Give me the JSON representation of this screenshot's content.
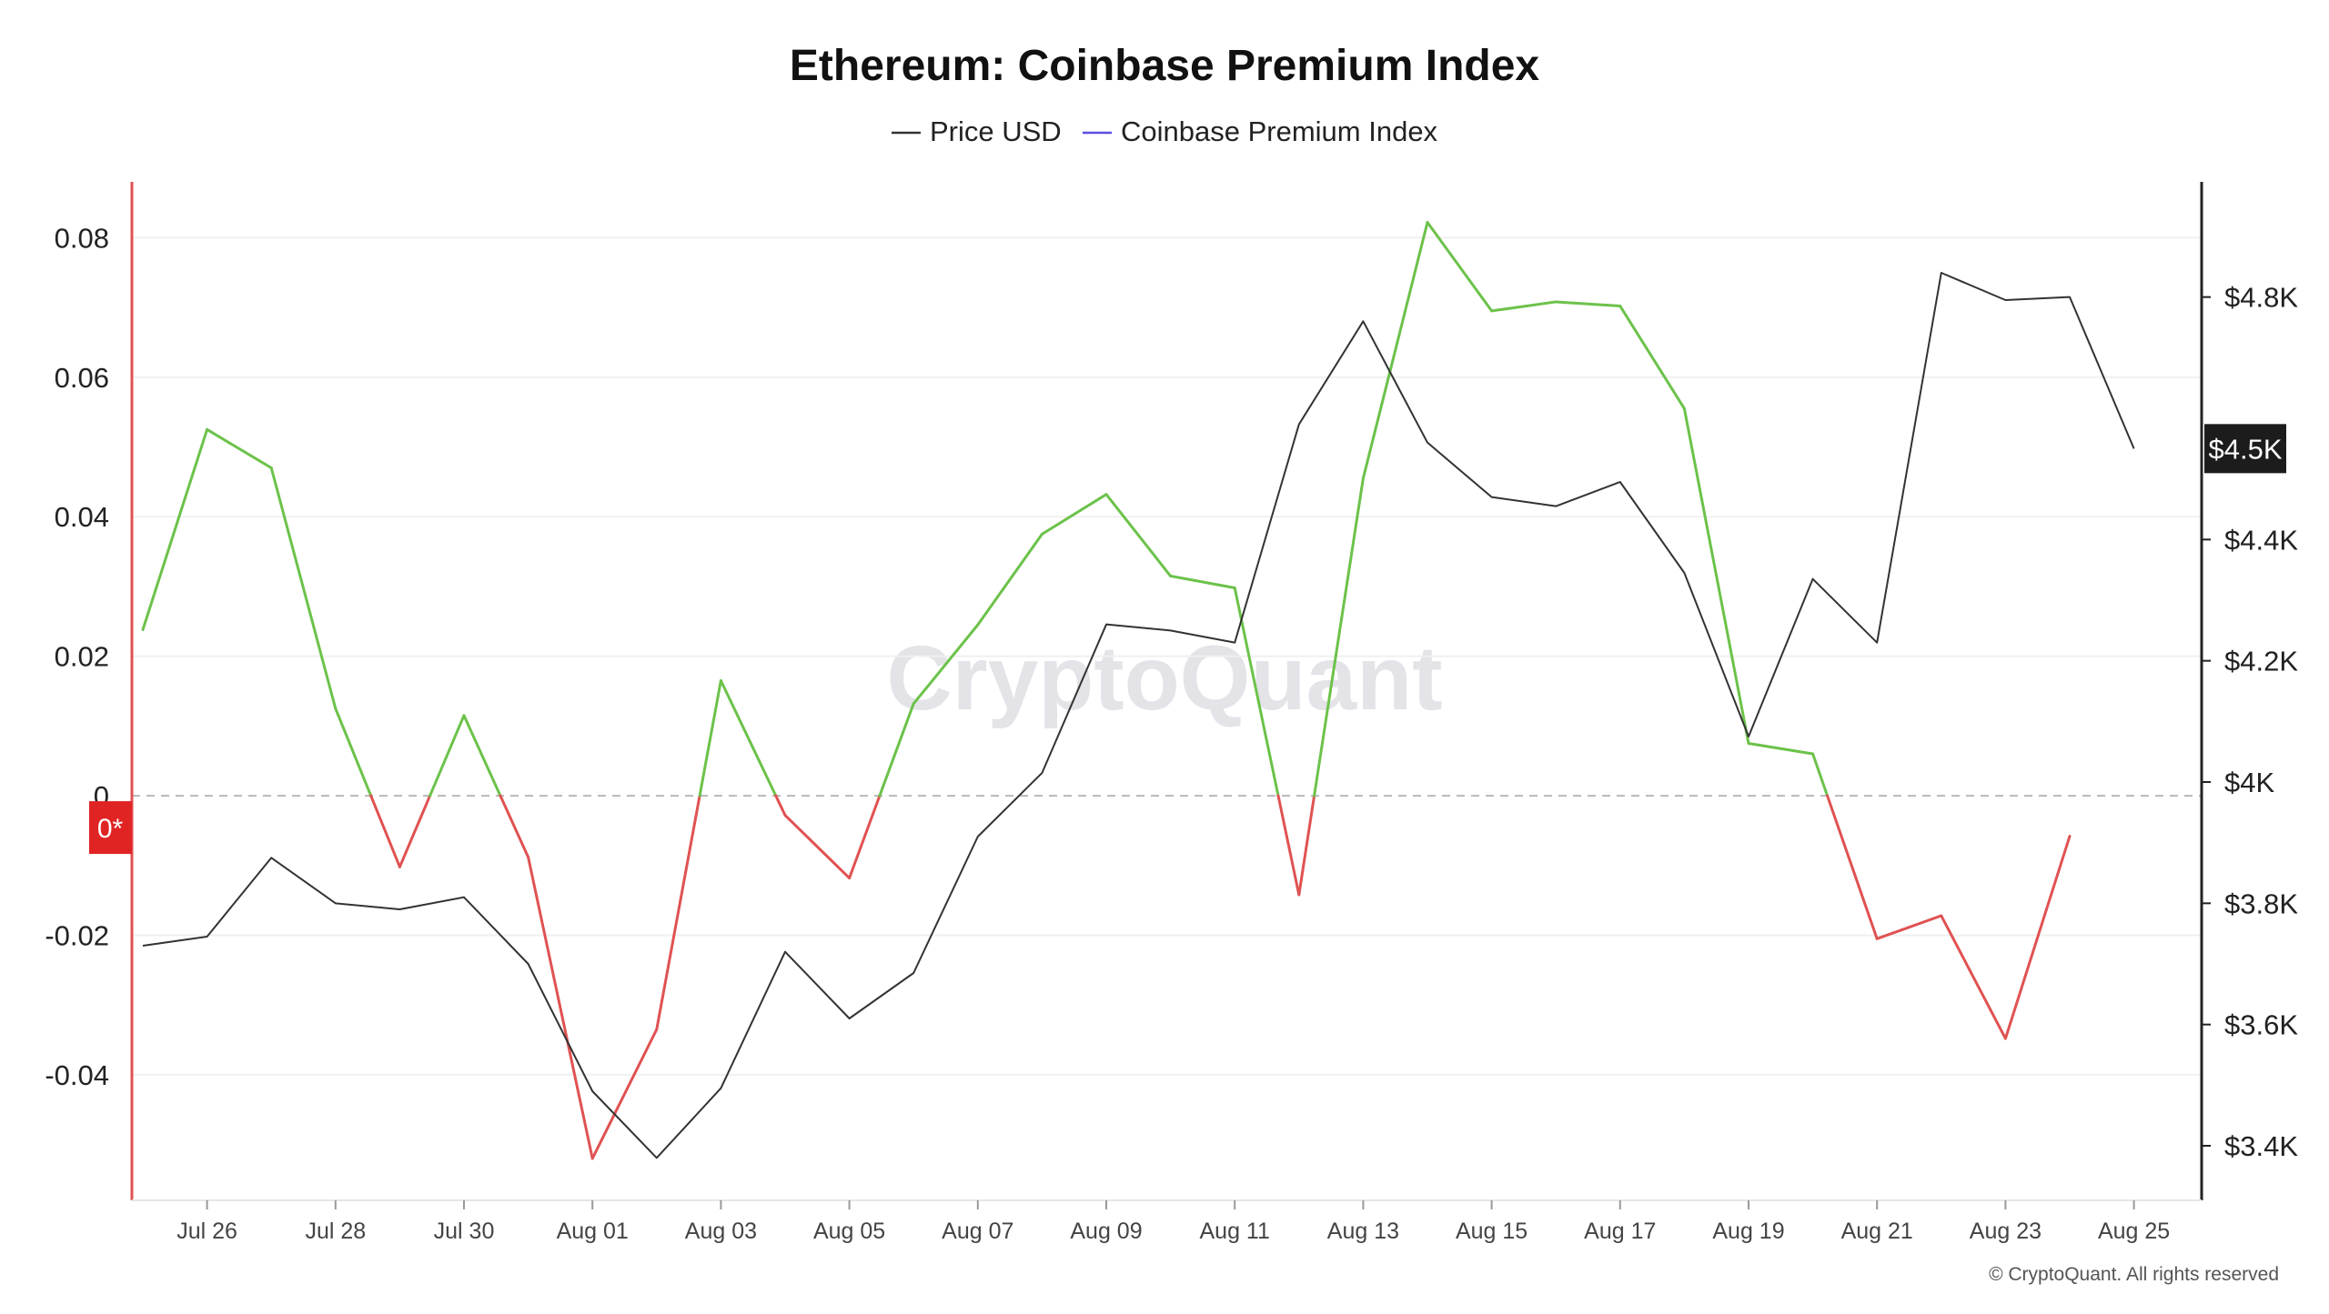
{
  "chart_data": {
    "type": "line",
    "title": "Ethereum: Coinbase Premium Index",
    "legend": {
      "placement": "top-center",
      "items": [
        {
          "name": "Price USD",
          "color": "#333333"
        },
        {
          "name": "Coinbase Premium Index",
          "color": "#5b4ee0"
        }
      ]
    },
    "x_labels": [
      "Jul 26",
      "Jul 28",
      "Jul 30",
      "Aug 01",
      "Aug 03",
      "Aug 05",
      "Aug 07",
      "Aug 09",
      "Aug 11",
      "Aug 13",
      "Aug 15",
      "Aug 17",
      "Aug 19",
      "Aug 21",
      "Aug 23",
      "Aug 25"
    ],
    "x": [
      "Jul 25",
      "Jul 26",
      "Jul 27",
      "Jul 28",
      "Jul 29",
      "Jul 30",
      "Jul 31",
      "Aug 01",
      "Aug 02",
      "Aug 03",
      "Aug 04",
      "Aug 05",
      "Aug 06",
      "Aug 07",
      "Aug 08",
      "Aug 09",
      "Aug 10",
      "Aug 11",
      "Aug 12",
      "Aug 13",
      "Aug 14",
      "Aug 15",
      "Aug 16",
      "Aug 17",
      "Aug 18",
      "Aug 19",
      "Aug 20",
      "Aug 21",
      "Aug 22",
      "Aug 23",
      "Aug 24",
      "Aug 25"
    ],
    "series": [
      {
        "name": "Coinbase Premium Index",
        "axis": "left",
        "positive_color": "#6cc24a",
        "negative_color": "#e05252",
        "values": [
          0.0238,
          0.0525,
          0.047,
          0.0125,
          -0.0102,
          0.0115,
          -0.0088,
          -0.052,
          -0.0335,
          0.0165,
          -0.0028,
          -0.0118,
          0.0132,
          0.0245,
          0.0375,
          0.0432,
          0.0315,
          0.0298,
          -0.0142,
          0.0455,
          0.0822,
          0.0695,
          0.0708,
          0.0702,
          0.0555,
          0.0075,
          0.006,
          -0.0205,
          -0.0172,
          -0.0348,
          -0.0058,
          null
        ]
      },
      {
        "name": "Price USD",
        "axis": "right",
        "color": "#333333",
        "values": [
          3730,
          3745,
          3875,
          3800,
          3790,
          3810,
          3700,
          3490,
          3380,
          3495,
          3720,
          3610,
          3685,
          3910,
          4015,
          4260,
          4250,
          4230,
          4590,
          4760,
          4560,
          4470,
          4455,
          4495,
          4345,
          4075,
          4335,
          4230,
          4840,
          4795,
          4800,
          4550
        ]
      }
    ],
    "y_left": {
      "ticks": [
        "0.08",
        "0.06",
        "0.04",
        "0.02",
        "0",
        "-0.02",
        "-0.04"
      ],
      "range": [
        -0.058,
        0.088
      ],
      "grid": true
    },
    "y_right": {
      "ticks": [
        "$4.8K",
        "$4.5K",
        "$4.4K",
        "$4.2K",
        "$4K",
        "$3.8K",
        "$3.6K",
        "$3.4K"
      ],
      "range": [
        3310,
        4990
      ]
    },
    "current_price_label": "$4.5K",
    "zero_marker_label": "0*",
    "watermark": "CryptoQuant",
    "copyright": "© CryptoQuant. All rights reserved"
  }
}
